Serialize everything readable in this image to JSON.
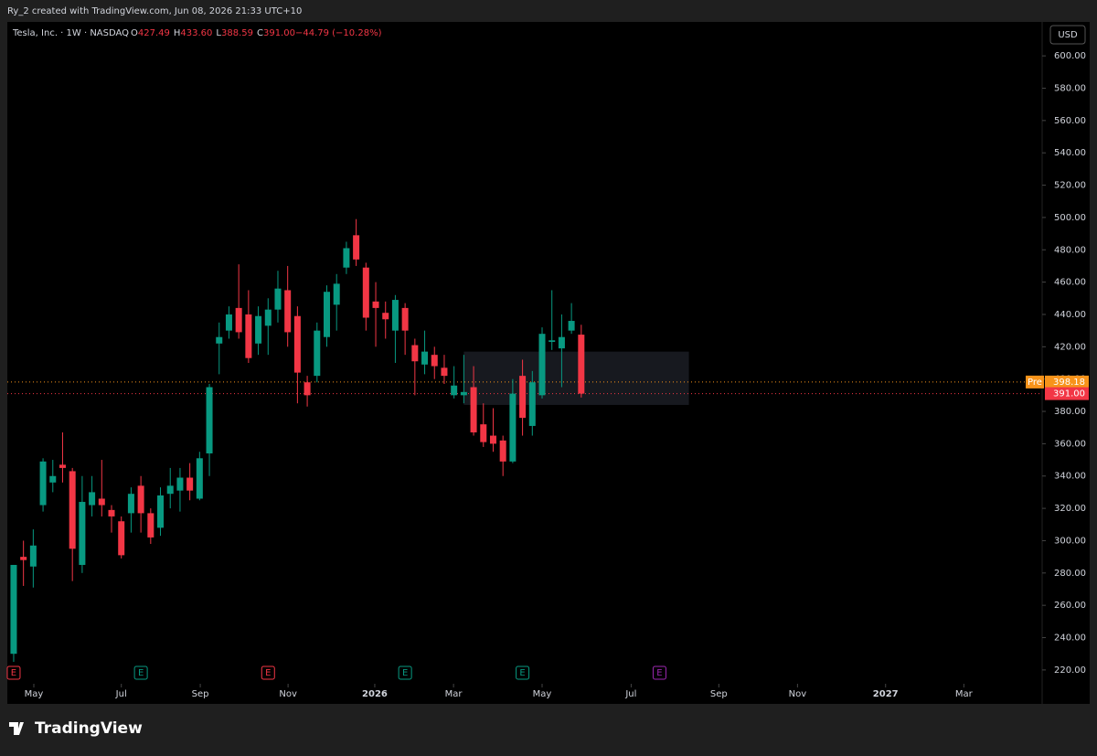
{
  "header": {
    "text": "Ry_2 created with TradingView.com, Jun 08, 2026 21:33 UTC+10"
  },
  "footer": {
    "logo": "TradingView"
  },
  "chart_data": {
    "type": "candlestick",
    "symbol": "Tesla, Inc. · 1W · NASDAQ",
    "legend": [
      {
        "label": "O",
        "value": "427.49"
      },
      {
        "label": "H",
        "value": "433.60"
      },
      {
        "label": "L",
        "value": "388.59"
      },
      {
        "label": "C",
        "value": "391.00"
      },
      {
        "label": "",
        "value": "−44.79 (−10.28%)"
      }
    ],
    "currency": "USD",
    "up_color": "#089981",
    "down_color": "#f23645",
    "xlim": [
      -0.65,
      105.1
    ],
    "ylim": [
      199,
      621
    ],
    "yticks": [
      {
        "value": 220,
        "label": "220.00"
      },
      {
        "value": 240,
        "label": "240.00"
      },
      {
        "value": 260,
        "label": "260.00"
      },
      {
        "value": 280,
        "label": "280.00"
      },
      {
        "value": 300,
        "label": "300.00"
      },
      {
        "value": 320,
        "label": "320.00"
      },
      {
        "value": 340,
        "label": "340.00"
      },
      {
        "value": 360,
        "label": "360.00"
      },
      {
        "value": 380,
        "label": "380.00"
      },
      {
        "value": 400,
        "label": "400.00"
      },
      {
        "value": 420,
        "label": "420.00"
      },
      {
        "value": 440,
        "label": "440.00"
      },
      {
        "value": 460,
        "label": "460.00"
      },
      {
        "value": 480,
        "label": "480.00"
      },
      {
        "value": 500,
        "label": "500.00"
      },
      {
        "value": 520,
        "label": "520.00"
      },
      {
        "value": 540,
        "label": "540.00"
      },
      {
        "value": 560,
        "label": "560.00"
      },
      {
        "value": 580,
        "label": "580.00"
      },
      {
        "value": 600,
        "label": "600.00"
      }
    ],
    "xticks": [
      {
        "value": 2.06,
        "label": "May"
      },
      {
        "value": 11,
        "label": "Jul"
      },
      {
        "value": 19.07,
        "label": "Sep"
      },
      {
        "value": 28.04,
        "label": "Nov"
      },
      {
        "value": 36.9,
        "label": "2026"
      },
      {
        "value": 44.95,
        "label": "Mar"
      },
      {
        "value": 54,
        "label": "May"
      },
      {
        "value": 63.1,
        "label": "Jul"
      },
      {
        "value": 72.06,
        "label": "Sep"
      },
      {
        "value": 80.1,
        "label": "Nov"
      },
      {
        "value": 89.1,
        "label": "2027"
      },
      {
        "value": 97.1,
        "label": "Mar"
      }
    ],
    "open": [
      230,
      290,
      284,
      322,
      336,
      347,
      343,
      285,
      322,
      326,
      319,
      312,
      317,
      334,
      317,
      308,
      329,
      331,
      339,
      326,
      354,
      422,
      430,
      444,
      440,
      422,
      433,
      443,
      455,
      439,
      398,
      402,
      426,
      446,
      469,
      489,
      469,
      448,
      441,
      430,
      444,
      421,
      409,
      415,
      407,
      390,
      390,
      395,
      372,
      365,
      362,
      349,
      402,
      371,
      390,
      423,
      419,
      430,
      427.49
    ],
    "high": [
      285,
      300,
      307,
      351,
      350,
      367,
      345,
      340,
      340,
      350,
      322,
      315,
      333,
      340,
      320,
      333,
      345,
      345,
      348,
      355,
      397,
      435,
      445,
      471,
      455,
      445,
      450,
      467,
      470,
      445,
      402,
      435,
      458,
      465,
      485,
      499,
      472,
      460,
      448,
      452,
      447,
      425,
      430,
      420,
      415,
      408,
      415,
      408,
      385,
      382,
      365,
      400,
      412,
      405,
      432,
      455,
      440,
      447,
      433.6
    ],
    "low": [
      225,
      272,
      271,
      318,
      330,
      336,
      275,
      280,
      315,
      315,
      305,
      289,
      305,
      305,
      298,
      303,
      320,
      318,
      325,
      325,
      340,
      403,
      425,
      425,
      410,
      415,
      415,
      435,
      420,
      385,
      383,
      398,
      420,
      430,
      465,
      470,
      430,
      420,
      425,
      410,
      415,
      390,
      403,
      400,
      397,
      388,
      385,
      365,
      358,
      355,
      340,
      348,
      365,
      365,
      388,
      418,
      395,
      428,
      388.59
    ],
    "close": [
      285,
      288,
      297,
      349,
      340,
      345,
      295,
      324,
      330,
      322,
      315,
      291,
      329,
      317,
      302,
      328,
      334,
      339,
      331,
      351,
      395,
      426,
      440,
      429,
      413,
      439,
      443,
      456,
      429,
      404,
      390,
      430,
      454,
      459,
      481,
      474,
      438,
      444,
      437,
      449,
      430,
      411,
      417,
      408,
      402,
      396,
      392,
      367,
      361,
      360,
      349,
      391,
      376,
      398,
      428,
      424,
      426,
      436,
      391
    ],
    "price_lines": [
      {
        "label": "Pre",
        "value": 398.18,
        "value_label": "398.18",
        "color": "#f7931a"
      },
      {
        "label": "",
        "value": 391,
        "value_label": "391.00",
        "color": "#f23645"
      }
    ],
    "zone": {
      "start": 46,
      "end": 69,
      "top": 417,
      "bottom": 384
    },
    "events": [
      {
        "x": 0,
        "label": "E",
        "color": "#f23645"
      },
      {
        "x": 13,
        "label": "E",
        "color": "#089981"
      },
      {
        "x": 26,
        "label": "E",
        "color": "#f23645"
      },
      {
        "x": 40,
        "label": "E",
        "color": "#089981"
      },
      {
        "x": 52,
        "label": "E",
        "color": "#089981"
      },
      {
        "x": 66,
        "label": "E",
        "color": "#9c27b0"
      }
    ]
  }
}
